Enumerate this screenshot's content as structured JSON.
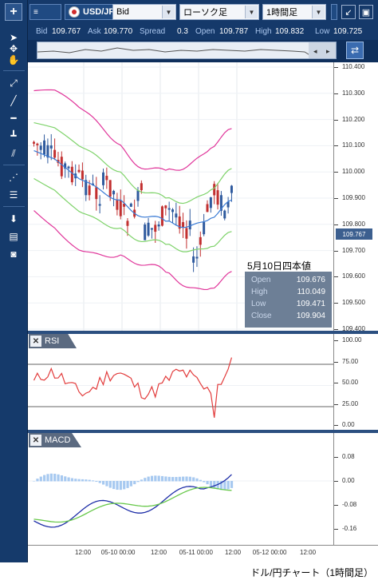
{
  "toolbar": {
    "add_label": "+",
    "tools": [
      "cursor-icon",
      "crosshair-icon",
      "hand-icon",
      "trend-line-icon",
      "diagonal-line-icon",
      "horizontal-line-icon",
      "vertical-line-icon",
      "parallel-lines-icon",
      "fibonacci-icon",
      "levels-icon",
      "download-icon",
      "list-icon",
      "camera-icon"
    ]
  },
  "topbar": {
    "pair_label": "USD/JPY",
    "price_type": "Bid",
    "chart_type": "ローソク足",
    "timeframe": "1時間足"
  },
  "quote": {
    "bid_label": "Bid",
    "bid": "109.767",
    "ask_label": "Ask",
    "ask": "109.770",
    "spread_label": "Spread",
    "spread": "0.3",
    "open_label": "Open",
    "open": "109.787",
    "high_label": "High",
    "high": "109.832",
    "low_label": "Low",
    "low": "109.725"
  },
  "main_chart": {
    "y_labels": [
      "110.400",
      "110.300",
      "110.200",
      "110.100",
      "110.000",
      "109.900",
      "109.800",
      "109.700",
      "109.600",
      "109.500",
      "109.400"
    ],
    "last_price": "109.767",
    "annotation_title": "5月10日四本値",
    "ohlc": [
      {
        "k": "Open",
        "v": "109.676"
      },
      {
        "k": "High",
        "v": "110.049"
      },
      {
        "k": "Low",
        "v": "109.471"
      },
      {
        "k": "Close",
        "v": "109.904"
      }
    ]
  },
  "rsi": {
    "title": "RSI",
    "close_label": "✕",
    "y_labels": [
      "100.00",
      "75.00",
      "50.00",
      "25.00",
      "0.00"
    ]
  },
  "macd": {
    "title": "MACD",
    "close_label": "✕",
    "y_labels": [
      "0.08",
      "0.00",
      "-0.08",
      "-0.16"
    ]
  },
  "x_axis": {
    "labels": [
      "12:00",
      "05-10 00:00",
      "12:00",
      "05-11 00:00",
      "12:00",
      "05-12 00:00",
      "12:00"
    ]
  },
  "caption": "ドル/円チャート（1時間足）",
  "colors": {
    "bull": "#2f5a9e",
    "bear": "#c23030",
    "ma_blue": "#3a7bd5",
    "band_green": "#7fd36b",
    "band_pink": "#e0359a",
    "rsi_line": "#e23b3b",
    "macd_line": "#1f2fa8",
    "signal_line": "#6ac94d",
    "hist": "#a7c9f0"
  }
}
